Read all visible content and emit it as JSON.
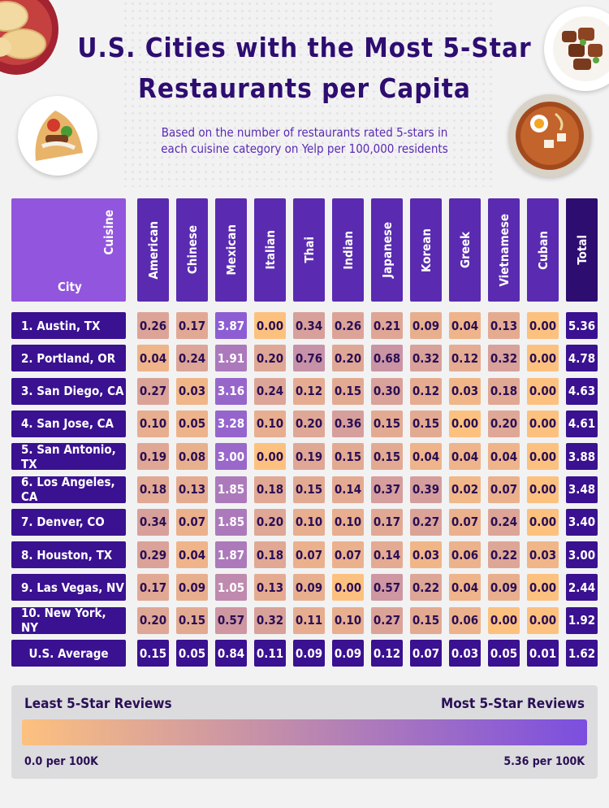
{
  "title_line1": "U.S. Cities with the Most 5-Star",
  "title_line2": "Restaurants per Capita",
  "subtitle_line1": "Based on the number of restaurants rated 5-stars in",
  "subtitle_line2": "each cuisine category on Yelp per 100,000 residents",
  "chart_data": {
    "type": "heatmap",
    "corner_top": "Cuisine",
    "corner_bottom": "City",
    "columns": [
      "American",
      "Chinese",
      "Mexican",
      "Italian",
      "Thai",
      "Indian",
      "Japanese",
      "Korean",
      "Greek",
      "Vietnamese",
      "Cuban",
      "Total"
    ],
    "rows": [
      {
        "label": "1. Austin, TX",
        "values": [
          "0.26",
          "0.17",
          "3.87",
          "0.00",
          "0.34",
          "0.26",
          "0.21",
          "0.09",
          "0.04",
          "0.13",
          "0.00",
          "5.36"
        ]
      },
      {
        "label": "2. Portland, OR",
        "values": [
          "0.04",
          "0.24",
          "1.91",
          "0.20",
          "0.76",
          "0.20",
          "0.68",
          "0.32",
          "0.12",
          "0.32",
          "0.00",
          "4.78"
        ]
      },
      {
        "label": "3. San Diego, CA",
        "values": [
          "0.27",
          "0.03",
          "3.16",
          "0.24",
          "0.12",
          "0.15",
          "0.30",
          "0.12",
          "0.03",
          "0.18",
          "0.00",
          "4.63"
        ]
      },
      {
        "label": "4. San Jose, CA",
        "values": [
          "0.10",
          "0.05",
          "3.28",
          "0.10",
          "0.20",
          "0.36",
          "0.15",
          "0.15",
          "0.00",
          "0.20",
          "0.00",
          "4.61"
        ]
      },
      {
        "label": "5. San Antonio, TX",
        "values": [
          "0.19",
          "0.08",
          "3.00",
          "0.00",
          "0.19",
          "0.15",
          "0.15",
          "0.04",
          "0.04",
          "0.04",
          "0.00",
          "3.88"
        ]
      },
      {
        "label": "6. Los Angeles, CA",
        "values": [
          "0.18",
          "0.13",
          "1.85",
          "0.18",
          "0.15",
          "0.14",
          "0.37",
          "0.39",
          "0.02",
          "0.07",
          "0.00",
          "3.48"
        ]
      },
      {
        "label": "7. Denver, CO",
        "values": [
          "0.34",
          "0.07",
          "1.85",
          "0.20",
          "0.10",
          "0.10",
          "0.17",
          "0.27",
          "0.07",
          "0.24",
          "0.00",
          "3.40"
        ]
      },
      {
        "label": "8. Houston, TX",
        "values": [
          "0.29",
          "0.04",
          "1.87",
          "0.18",
          "0.07",
          "0.07",
          "0.14",
          "0.03",
          "0.06",
          "0.22",
          "0.03",
          "3.00"
        ]
      },
      {
        "label": "9. Las Vegas, NV",
        "values": [
          "0.17",
          "0.09",
          "1.05",
          "0.13",
          "0.09",
          "0.00",
          "0.57",
          "0.22",
          "0.04",
          "0.09",
          "0.00",
          "2.44"
        ]
      },
      {
        "label": "10. New York, NY",
        "values": [
          "0.20",
          "0.15",
          "0.57",
          "0.32",
          "0.11",
          "0.10",
          "0.27",
          "0.15",
          "0.06",
          "0.00",
          "0.00",
          "1.92"
        ]
      }
    ],
    "average": {
      "label": "U.S. Average",
      "values": [
        "0.15",
        "0.05",
        "0.84",
        "0.11",
        "0.09",
        "0.09",
        "0.12",
        "0.07",
        "0.03",
        "0.05",
        "0.01",
        "1.62"
      ]
    },
    "scale": {
      "min": 0,
      "max": 5.36,
      "low_color": "#fdc17f",
      "high_color": "#7b4ee0",
      "header_color": "#5a2bb0",
      "total_header_color": "#2e0d70",
      "row_label_color": "#3a1190",
      "total_color": "#3a1190"
    }
  },
  "legend": {
    "left_title": "Least 5-Star Reviews",
    "right_title": "Most 5-Star Reviews",
    "left_value": "0.0 per 100K",
    "right_value": "5.36 per 100K"
  },
  "decor_icons": [
    "dumplings-icon",
    "beef-dish-icon",
    "gyro-wrap-icon",
    "ramen-bowl-icon"
  ]
}
